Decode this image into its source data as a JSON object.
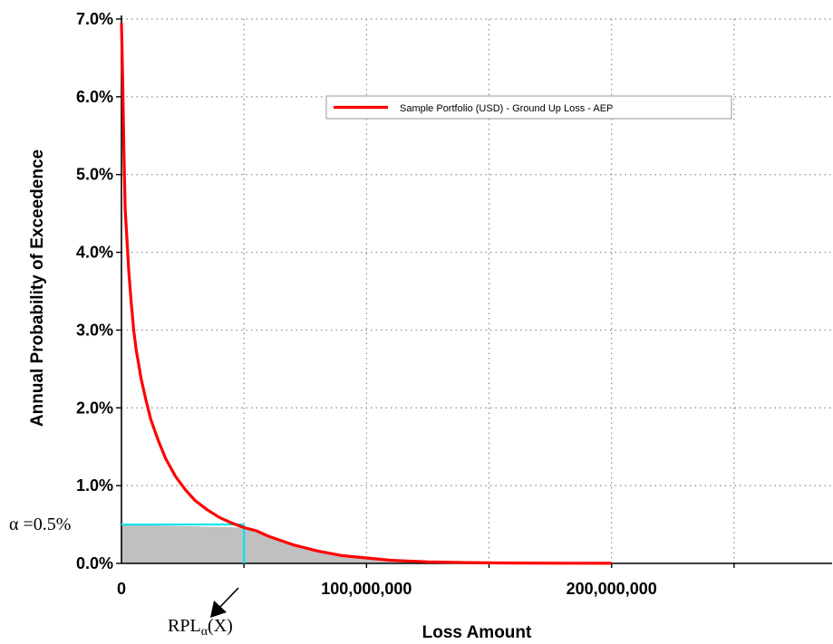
{
  "chart_data": {
    "type": "line",
    "xlabel": "Loss Amount",
    "ylabel": "Annual Probability of Exceedence",
    "xlim": [
      0,
      290000000
    ],
    "ylim": [
      0,
      0.07
    ],
    "x_ticks": [
      "0",
      "100,000,000",
      "200,000,000"
    ],
    "y_ticks": [
      "0.0%",
      "1.0%",
      "2.0%",
      "3.0%",
      "4.0%",
      "5.0%",
      "6.0%",
      "7.0%"
    ],
    "grid": true,
    "legend_position": "top-right",
    "colors": {
      "series": "#ff0000",
      "threshold": "#00e5ee",
      "shade": "#c0c0c0"
    },
    "series": [
      {
        "name": "Sample Portfolio (USD) - Ground Up Loss - AEP",
        "x": [
          0,
          500000,
          1000000,
          1500000,
          2000000,
          3000000,
          4000000,
          5000000,
          6000000,
          8000000,
          10000000,
          12000000,
          15000000,
          18000000,
          22000000,
          26000000,
          30000000,
          35000000,
          40000000,
          45000000,
          50000000,
          55000000,
          60000000,
          70000000,
          80000000,
          90000000,
          100000000,
          110000000,
          125000000,
          140000000,
          160000000,
          180000000,
          200000000
        ],
        "y": [
          0.0695,
          0.062,
          0.053,
          0.0455,
          0.043,
          0.0375,
          0.0335,
          0.03,
          0.0275,
          0.0238,
          0.021,
          0.0185,
          0.0158,
          0.0135,
          0.0112,
          0.0095,
          0.0081,
          0.0069,
          0.0059,
          0.0052,
          0.0046,
          0.0042,
          0.0035,
          0.0024,
          0.0016,
          0.001,
          0.0007,
          0.0004,
          0.0002,
          0.0001,
          5e-05,
          2e-05,
          1e-05
        ]
      }
    ],
    "annotations": {
      "alpha_label": "α =0.5%",
      "alpha_value": 0.005,
      "rpl_x_value": 50000000,
      "rpl_main": "RPL",
      "rpl_sub": "α",
      "rpl_arg": "(X)"
    }
  }
}
